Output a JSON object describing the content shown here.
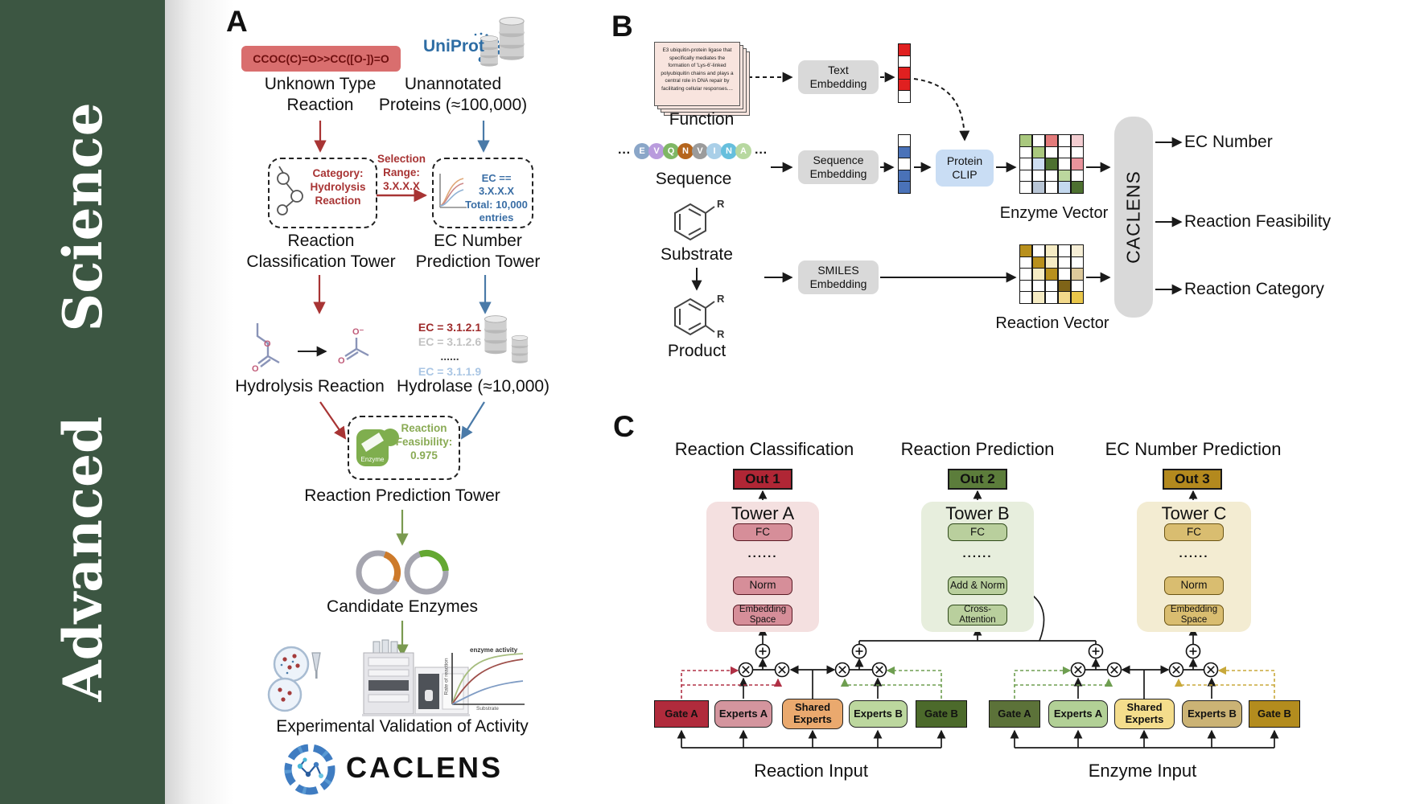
{
  "journal": {
    "name": "Advanced  Science"
  },
  "panelA": {
    "label": "A",
    "smiles": "CCOC(C)=O>>CC([O-])=O",
    "unknown_label": "Unknown Type\nReaction",
    "uniprot": "UniProt",
    "unannotated_label": "Unannotated\nProteins (≈100,000)",
    "category_label": "Category:\nHydrolysis\nReaction",
    "selection_label": "Selection\nRange:\n3.X.X.X",
    "ec_selection_label": "EC == 3.X.X.X\nTotal: 10,000\nentries",
    "classification_tower_label": "Reaction\nClassification Tower",
    "ec_tower_label": "EC Number\nPrediction Tower",
    "ec_items": [
      {
        "text": "EC = 3.1.2.1",
        "color": "#9e2b2b"
      },
      {
        "text": "EC = 3.1.2.6",
        "color": "#c2c2c2"
      },
      {
        "text": "......",
        "color": "#444444"
      },
      {
        "text": "EC = 3.1.1.9",
        "color": "#aac6e4"
      }
    ],
    "hydrolysis_label": "Hydrolysis Reaction",
    "hydrolase_label": "Hydrolase (≈10,000)",
    "enzyme_icon_label": "Enzyme",
    "feasibility_label": "Reaction\nFeasibility:\n0.975",
    "prediction_tower_label": "Reaction Prediction Tower",
    "candidate_label": "Candidate Enzymes",
    "graph": {
      "ylabel": "Rate of reaction",
      "xlabel": "Substrate",
      "annotation": "enzyme activity"
    },
    "validation_label": "Experimental Validation of Activity",
    "brand": "CACLENS"
  },
  "panelB": {
    "label": "B",
    "function_card_text": "E3 ubiquitin-protein ligase that specifically mediates the formation of 'Lys-6'-linked polyubiquitin chains and plays a central role in DNA repair by facilitating cellular responses....",
    "function_label": "Function",
    "ellipsis_left": "···",
    "ellipsis_right": "···",
    "sequence_tokens": [
      {
        "letter": "E",
        "color": "#8aa6c8"
      },
      {
        "letter": "V",
        "color": "#b99bdd"
      },
      {
        "letter": "Q",
        "color": "#7fb765"
      },
      {
        "letter": "N",
        "color": "#b5651d"
      },
      {
        "letter": "V",
        "color": "#9b9b9b"
      },
      {
        "letter": "I",
        "color": "#a9cfe8"
      },
      {
        "letter": "N",
        "color": "#66bfdd"
      },
      {
        "letter": "A",
        "color": "#b7d8a0"
      }
    ],
    "sequence_label": "Sequence",
    "substrate_label": "Substrate",
    "product_label": "Product",
    "r_label": "R",
    "text_embedding": "Text\nEmbedding",
    "sequence_embedding": "Sequence\nEmbedding",
    "smiles_embedding": "SMILES\nEmbedding",
    "protein_clip": "Protein\nCLIP",
    "text_vector_cells": [
      "#e02020",
      "#ffffff",
      "#e02020",
      "#e02020",
      "#ffffff"
    ],
    "sequence_vector_cells": [
      "#ffffff",
      "#4a72b8",
      "#ffffff",
      "#4a72b8",
      "#4a72b8"
    ],
    "enzyme_vector": {
      "label": "Enzyme Vector",
      "cells": [
        "#a9c87e",
        "#ffffff",
        "#e37b7b",
        "#ffffff",
        "#f3cdd1",
        "#ffffff",
        "#a9c87e",
        "#ffffff",
        "#ffffff",
        "#ffffff",
        "#ffffff",
        "#cfdff2",
        "#4d7030",
        "#ffffff",
        "#e9949c",
        "#ffffff",
        "#ffffff",
        "#ffffff",
        "#bcd79e",
        "#ffffff",
        "#ffffff",
        "#b9c6d6",
        "#ffffff",
        "#c3d8ee",
        "#4d7030"
      ]
    },
    "reaction_vector": {
      "label": "Reaction Vector",
      "cells": [
        "#b8901d",
        "#ffffff",
        "#f6ecc4",
        "#ffffff",
        "#f6eed6",
        "#ffffff",
        "#b8901d",
        "#f6ecc4",
        "#ffffff",
        "#ffffff",
        "#ffffff",
        "#f6ecc4",
        "#b8901d",
        "#ffffff",
        "#ddc99b",
        "#ffffff",
        "#ffffff",
        "#ffffff",
        "#7f6418",
        "#ffffff",
        "#ffffff",
        "#f6ecc4",
        "#ffffff",
        "#f2d98b",
        "#e9c64a"
      ]
    },
    "caclens_bar": "CACLENS",
    "outputs": [
      "EC Number",
      "Reaction Feasibility",
      "Reaction Category"
    ]
  },
  "panelC": {
    "label": "C",
    "col_titles": [
      "Reaction Classification",
      "Reaction Prediction",
      "EC Number Prediction"
    ],
    "outs": [
      "Out 1",
      "Out 2",
      "Out 3"
    ],
    "tower_a": {
      "title": "Tower A",
      "fc": "FC",
      "dots": "......",
      "norm": "Norm",
      "embedding": "Embedding\nSpace"
    },
    "tower_b": {
      "title": "Tower B",
      "fc": "FC",
      "dots": "......",
      "addnorm": "Add & Norm",
      "cross": "Cross-\nAttention"
    },
    "tower_c": {
      "title": "Tower C",
      "fc": "FC",
      "dots": "......",
      "norm": "Norm",
      "embedding": "Embedding\nSpace"
    },
    "moe_left": {
      "gate_a": "Gate A",
      "experts_a": "Experts A",
      "shared": "Shared\nExperts",
      "experts_b": "Experts B",
      "gate_b": "Gate B",
      "input_label": "Reaction Input"
    },
    "moe_right": {
      "gate_a": "Gate A",
      "experts_a": "Experts A",
      "shared": "Shared\nExperts",
      "experts_b": "Experts B",
      "gate_b": "Gate B",
      "input_label": "Enzyme Input"
    },
    "colors": {
      "out1": "#b02635",
      "out2": "#5c7d3b",
      "out3": "#b3891e",
      "gate_a_left": "#b02b3c",
      "experts_a_left": "#d4959e",
      "shared_left": "#eaa96e",
      "experts_b_left": "#bcd79e",
      "gate_b_left": "#4c6a2b",
      "gate_a_right": "#5c7239",
      "experts_a_right": "#b2d096",
      "shared_right": "#f4dd8c",
      "experts_b_right": "#cbb375",
      "gate_b_right": "#b38c1e"
    }
  }
}
